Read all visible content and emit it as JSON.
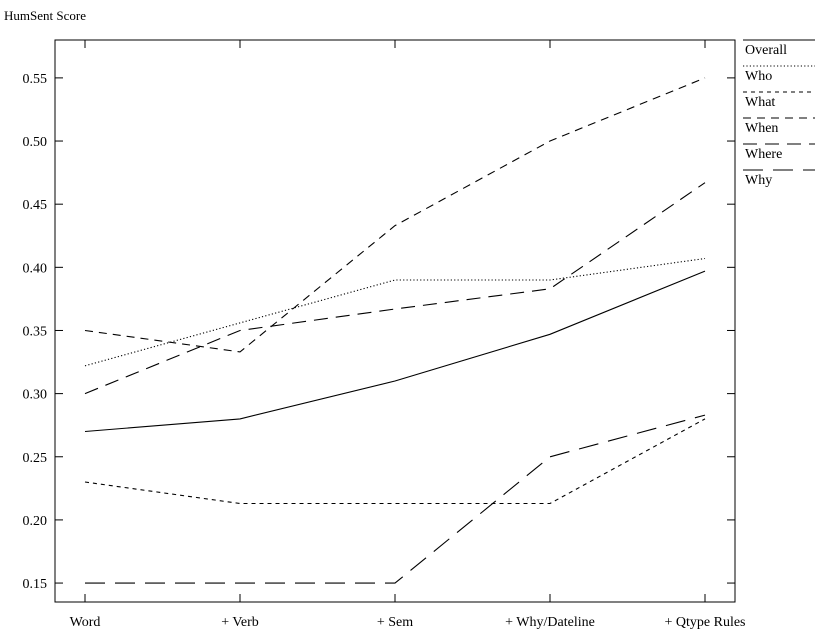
{
  "chart_data": {
    "type": "line",
    "title": "",
    "ylabel": "HumSent Score",
    "xlabel": "",
    "categories": [
      "Word",
      "+ Verb",
      "+ Sem",
      "+ Why/Dateline",
      "+ Qtype Rules"
    ],
    "yticks": [
      0.15,
      0.2,
      0.25,
      0.3,
      0.35,
      0.4,
      0.45,
      0.5,
      0.55
    ],
    "ytick_labels": [
      "0.15",
      "0.20",
      "0.25",
      "0.30",
      "0.35",
      "0.40",
      "0.45",
      "0.50",
      "0.55"
    ],
    "ylim": [
      0.135,
      0.58
    ],
    "grid": false,
    "legend_position": "outside-right",
    "series": [
      {
        "name": "Overall",
        "values": [
          0.27,
          0.28,
          0.31,
          0.347,
          0.397
        ],
        "dash": "solid"
      },
      {
        "name": "Who",
        "values": [
          0.322,
          0.356,
          0.39,
          0.39,
          0.407
        ],
        "dash": "dotted"
      },
      {
        "name": "What",
        "values": [
          0.23,
          0.213,
          0.213,
          0.213,
          0.28
        ],
        "dash": "short-dash"
      },
      {
        "name": "When",
        "values": [
          0.35,
          0.333,
          0.433,
          0.5,
          0.55
        ],
        "dash": "medium-dash"
      },
      {
        "name": "Where",
        "values": [
          0.3,
          0.35,
          0.367,
          0.383,
          0.467
        ],
        "dash": "long-dash"
      },
      {
        "name": "Why",
        "values": [
          0.15,
          0.15,
          0.15,
          0.25,
          0.283
        ],
        "dash": "longer-dash"
      }
    ]
  }
}
